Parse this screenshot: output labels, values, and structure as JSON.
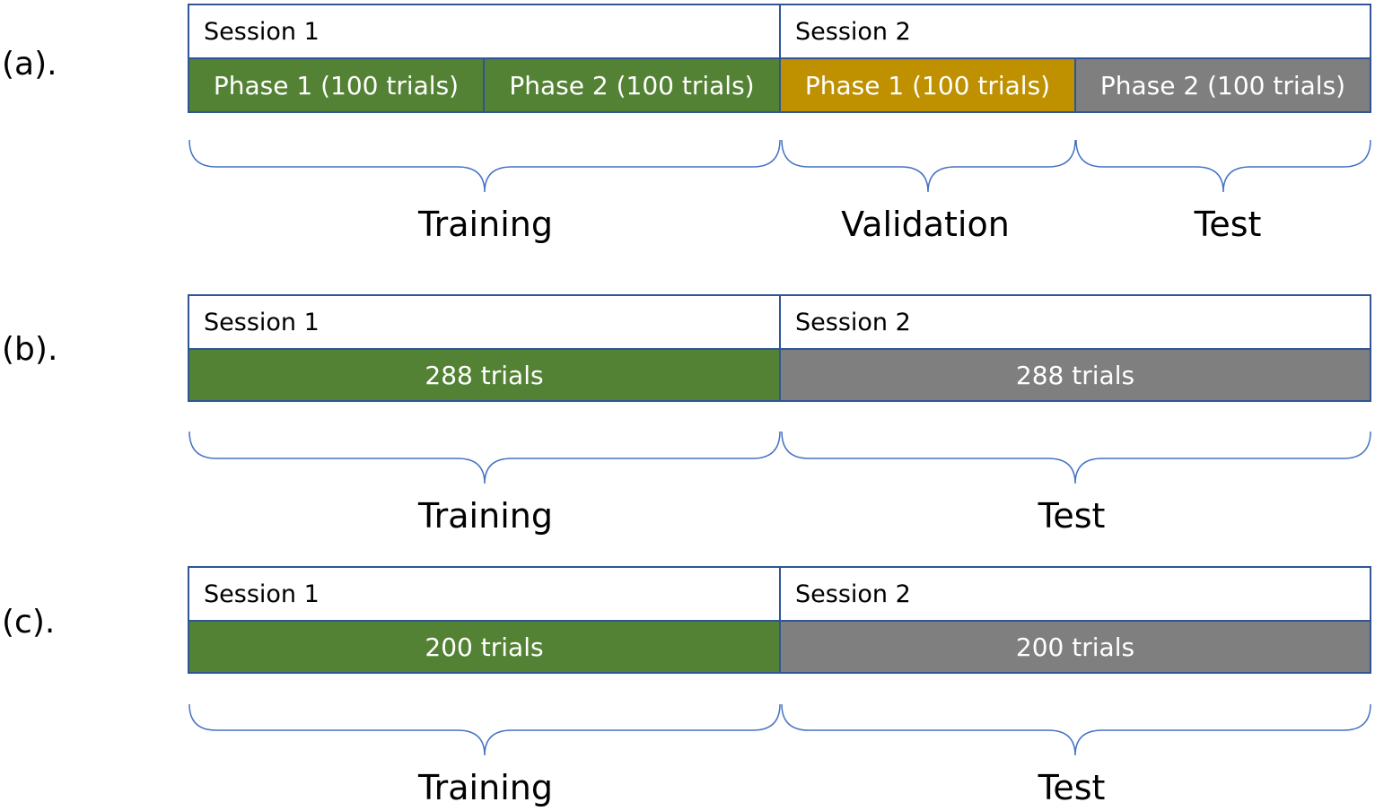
{
  "panels": {
    "a": {
      "label": "(a).",
      "session1": "Session 1",
      "session2": "Session 2",
      "segments": [
        "Phase 1 (100 trials)",
        "Phase 2 (100 trials)",
        "Phase 1 (100 trials)",
        "Phase 2 (100 trials)"
      ],
      "splits": [
        "Training",
        "Validation",
        "Test"
      ]
    },
    "b": {
      "label": "(b).",
      "session1": "Session 1",
      "session2": "Session 2",
      "segments": [
        "288 trials",
        "288 trials"
      ],
      "splits": [
        "Training",
        "Test"
      ]
    },
    "c": {
      "label": "(c).",
      "session1": "Session 1",
      "session2": "Session 2",
      "segments": [
        "200 trials",
        "200 trials"
      ],
      "splits": [
        "Training",
        "Test"
      ]
    }
  },
  "colors": {
    "training": "#548235",
    "validation": "#bf9000",
    "test": "#7f7f7f",
    "border": "#2f5597",
    "brace": "#4472c4"
  }
}
